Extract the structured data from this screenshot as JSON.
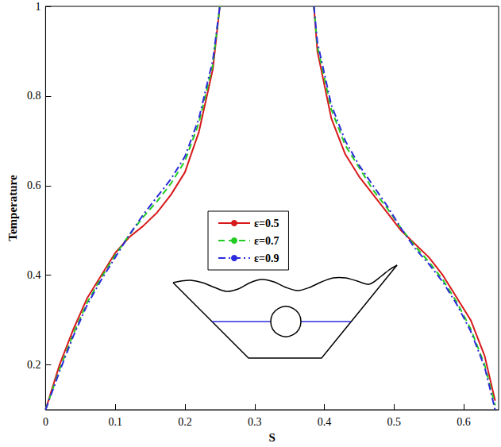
{
  "chart_data": {
    "type": "line",
    "x_label": "S",
    "y_label": "Temperature",
    "x": [
      0,
      0.02,
      0.04,
      0.06,
      0.08,
      0.1,
      0.12,
      0.14,
      0.16,
      0.18,
      0.2,
      0.22,
      0.24,
      0.25,
      0.32,
      0.385,
      0.39,
      0.41,
      0.43,
      0.45,
      0.47,
      0.49,
      0.51,
      0.53,
      0.55,
      0.57,
      0.59,
      0.61,
      0.63,
      0.645
    ],
    "series": [
      {
        "name": "ε=0.5",
        "color": "#d7191c",
        "line_style": "solid",
        "values": [
          0.1,
          0.2,
          0.28,
          0.35,
          0.4,
          0.45,
          0.485,
          0.51,
          0.54,
          0.58,
          0.63,
          0.72,
          0.86,
          1.0,
          null,
          1.0,
          0.9,
          0.75,
          0.67,
          0.62,
          0.58,
          0.54,
          0.5,
          0.47,
          0.44,
          0.4,
          0.35,
          0.3,
          0.22,
          0.12
        ]
      },
      {
        "name": "ε=0.7",
        "color": "#22cc22",
        "line_style": "dashed",
        "values": [
          0.1,
          0.19,
          0.27,
          0.34,
          0.395,
          0.445,
          0.49,
          0.53,
          0.565,
          0.605,
          0.655,
          0.74,
          0.87,
          1.0,
          null,
          1.0,
          0.91,
          0.77,
          0.69,
          0.64,
          0.59,
          0.55,
          0.505,
          0.465,
          0.43,
          0.39,
          0.34,
          0.28,
          0.2,
          0.11
        ]
      },
      {
        "name": "ε=0.9",
        "color": "#2b2bdb",
        "line_style": "dashdot",
        "values": [
          0.1,
          0.185,
          0.265,
          0.335,
          0.39,
          0.44,
          0.49,
          0.535,
          0.575,
          0.615,
          0.665,
          0.75,
          0.88,
          1.0,
          null,
          1.0,
          0.92,
          0.78,
          0.7,
          0.645,
          0.6,
          0.555,
          0.505,
          0.46,
          0.425,
          0.385,
          0.335,
          0.275,
          0.195,
          0.1
        ]
      }
    ],
    "xlim": [
      0,
      0.65
    ],
    "xticks": [
      0,
      0.1,
      0.2,
      0.3,
      0.4,
      0.5,
      0.6
    ],
    "ylim": [
      0.1,
      1
    ],
    "yticks": [
      0.2,
      0.4,
      0.6,
      0.8,
      1
    ],
    "grid": false,
    "legend": "center",
    "marker": "none"
  }
}
